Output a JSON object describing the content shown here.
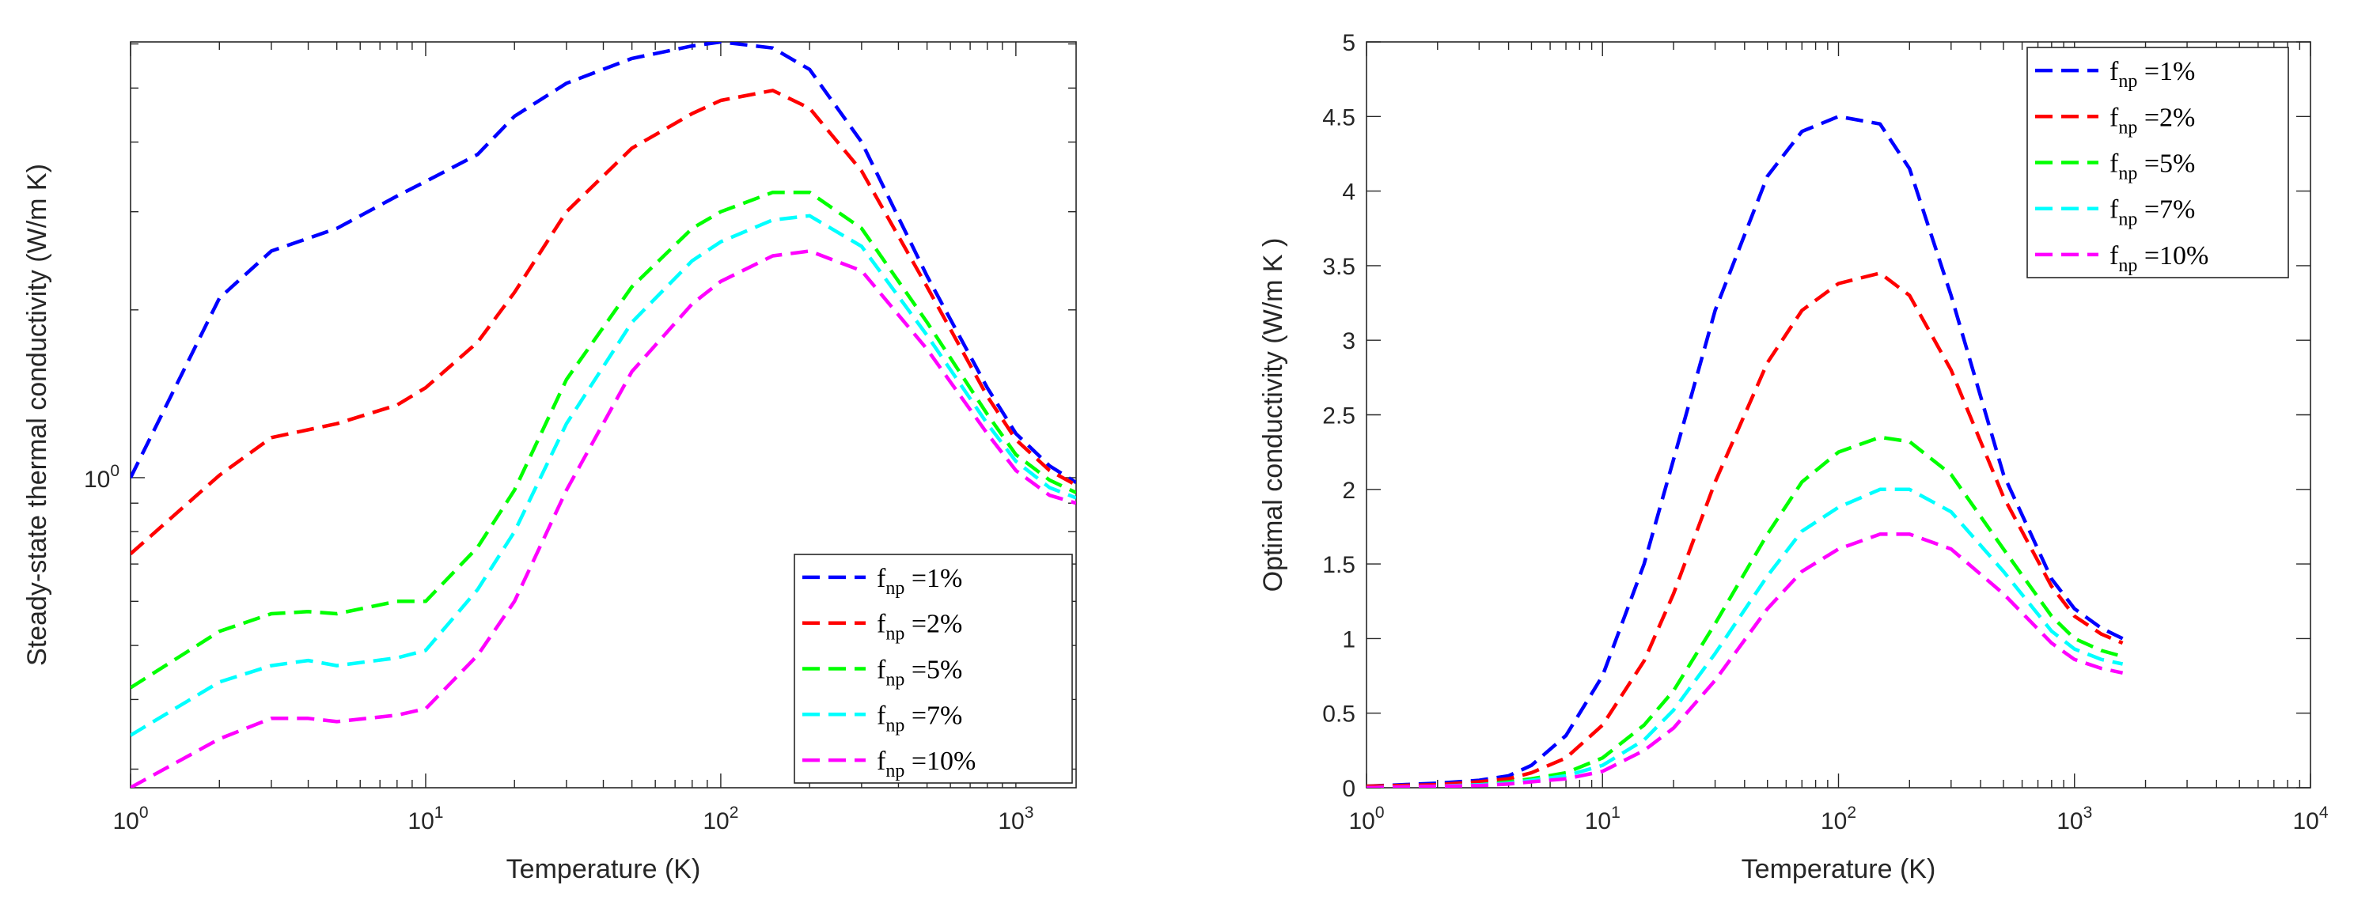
{
  "chart_data": [
    {
      "type": "line",
      "xscale": "log",
      "yscale": "log",
      "xlabel": "Temperature (K)",
      "ylabel": "Steady-state thermal conductivity (W/m K)",
      "xlim": [
        1,
        1600
      ],
      "ylim": [
        0.2778,
        6.05
      ],
      "xticks": [
        {
          "value": 1,
          "base": "10",
          "exp": "0"
        },
        {
          "value": 10,
          "base": "10",
          "exp": "1"
        },
        {
          "value": 100,
          "base": "10",
          "exp": "2"
        },
        {
          "value": 1000,
          "base": "10",
          "exp": "3"
        }
      ],
      "yticks": [
        {
          "value": 1,
          "base": "10",
          "exp": "0"
        }
      ],
      "legend_position": "bottom-right",
      "series": [
        {
          "name": "f_np = 1%",
          "label_main": "f",
          "label_sub": "np",
          "label_rest": " =1%",
          "color": "#0000ff",
          "x": [
            1,
            2,
            3,
            5,
            8,
            10,
            15,
            20,
            30,
            50,
            80,
            100,
            150,
            200,
            300,
            500,
            800,
            1000,
            1300,
            1600
          ],
          "y": [
            1.0,
            2.1,
            2.55,
            2.8,
            3.2,
            3.4,
            3.8,
            4.45,
            5.1,
            5.65,
            5.95,
            6.05,
            5.9,
            5.4,
            4.0,
            2.3,
            1.45,
            1.2,
            1.05,
            0.98
          ]
        },
        {
          "name": "f_np = 2%",
          "label_main": "f",
          "label_sub": "np",
          "label_rest": " =2%",
          "color": "#ff0000",
          "x": [
            1,
            2,
            3,
            5,
            8,
            10,
            15,
            20,
            30,
            50,
            80,
            100,
            150,
            200,
            300,
            500,
            800,
            1000,
            1300,
            1600
          ],
          "y": [
            0.73,
            1.01,
            1.18,
            1.25,
            1.35,
            1.45,
            1.75,
            2.15,
            3.0,
            3.9,
            4.5,
            4.75,
            4.95,
            4.6,
            3.55,
            2.2,
            1.4,
            1.17,
            1.03,
            0.97
          ]
        },
        {
          "name": "f_np = 5%",
          "label_main": "f",
          "label_sub": "np",
          "label_rest": " =5%",
          "color": "#00ff00",
          "x": [
            1,
            2,
            3,
            4,
            5,
            8,
            10,
            15,
            20,
            30,
            50,
            80,
            100,
            150,
            200,
            300,
            500,
            800,
            1000,
            1300,
            1600
          ],
          "y": [
            0.42,
            0.53,
            0.57,
            0.575,
            0.57,
            0.6,
            0.6,
            0.75,
            0.95,
            1.5,
            2.2,
            2.8,
            3.0,
            3.25,
            3.25,
            2.8,
            1.9,
            1.3,
            1.1,
            0.99,
            0.94
          ]
        },
        {
          "name": "f_np = 7%",
          "label_main": "f",
          "label_sub": "np",
          "label_rest": " =7%",
          "color": "#00ffff",
          "x": [
            1,
            2,
            3,
            4,
            5,
            8,
            10,
            15,
            20,
            30,
            50,
            80,
            100,
            150,
            200,
            300,
            500,
            800,
            1000,
            1300,
            1600
          ],
          "y": [
            0.345,
            0.43,
            0.46,
            0.47,
            0.46,
            0.475,
            0.49,
            0.63,
            0.8,
            1.25,
            1.9,
            2.45,
            2.65,
            2.9,
            2.95,
            2.6,
            1.8,
            1.25,
            1.07,
            0.96,
            0.92
          ]
        },
        {
          "name": "f_np = 10%",
          "label_main": "f",
          "label_sub": "np",
          "label_rest": " =10%",
          "color": "#ff00ff",
          "x": [
            1,
            2,
            3,
            4,
            5,
            8,
            10,
            15,
            20,
            30,
            50,
            80,
            100,
            150,
            200,
            300,
            500,
            800,
            1000,
            1300,
            1600
          ],
          "y": [
            0.278,
            0.34,
            0.37,
            0.37,
            0.365,
            0.375,
            0.385,
            0.48,
            0.6,
            0.95,
            1.55,
            2.05,
            2.25,
            2.5,
            2.55,
            2.35,
            1.7,
            1.2,
            1.03,
            0.93,
            0.9
          ]
        }
      ]
    },
    {
      "type": "line",
      "xscale": "log",
      "yscale": "linear",
      "xlabel": "Temperature (K)",
      "ylabel": "Optimal conductivity (W/m K )",
      "xlim": [
        1,
        10000
      ],
      "ylim": [
        0,
        5
      ],
      "xticks": [
        {
          "value": 1,
          "base": "10",
          "exp": "0"
        },
        {
          "value": 10,
          "base": "10",
          "exp": "1"
        },
        {
          "value": 100,
          "base": "10",
          "exp": "2"
        },
        {
          "value": 1000,
          "base": "10",
          "exp": "3"
        },
        {
          "value": 10000,
          "base": "10",
          "exp": "4"
        }
      ],
      "yticks": [
        {
          "value": 0,
          "label": "0"
        },
        {
          "value": 0.5,
          "label": "0.5"
        },
        {
          "value": 1,
          "label": "1"
        },
        {
          "value": 1.5,
          "label": "1.5"
        },
        {
          "value": 2,
          "label": "2"
        },
        {
          "value": 2.5,
          "label": "2.5"
        },
        {
          "value": 3,
          "label": "3"
        },
        {
          "value": 3.5,
          "label": "3.5"
        },
        {
          "value": 4,
          "label": "4"
        },
        {
          "value": 4.5,
          "label": "4.5"
        },
        {
          "value": 5,
          "label": "5"
        }
      ],
      "legend_position": "top-right",
      "series": [
        {
          "name": "f_np = 1%",
          "label_main": "f",
          "label_sub": "np",
          "label_rest": " =1%",
          "color": "#0000ff",
          "x": [
            1,
            2,
            3,
            4,
            5,
            7,
            10,
            15,
            20,
            30,
            50,
            70,
            100,
            150,
            200,
            300,
            500,
            800,
            1000,
            1300,
            1600
          ],
          "y": [
            0.01,
            0.03,
            0.05,
            0.08,
            0.15,
            0.35,
            0.75,
            1.5,
            2.2,
            3.2,
            4.1,
            4.4,
            4.5,
            4.45,
            4.15,
            3.3,
            2.1,
            1.4,
            1.2,
            1.07,
            1.0
          ]
        },
        {
          "name": "f_np = 2%",
          "label_main": "f",
          "label_sub": "np",
          "label_rest": " =2%",
          "color": "#ff0000",
          "x": [
            1,
            2,
            3,
            4,
            5,
            7,
            10,
            15,
            20,
            30,
            50,
            70,
            100,
            150,
            200,
            300,
            500,
            800,
            1000,
            1300,
            1600
          ],
          "y": [
            0.01,
            0.02,
            0.04,
            0.06,
            0.1,
            0.2,
            0.42,
            0.85,
            1.3,
            2.05,
            2.85,
            3.2,
            3.38,
            3.45,
            3.3,
            2.8,
            1.95,
            1.35,
            1.15,
            1.03,
            0.97
          ]
        },
        {
          "name": "f_np = 5%",
          "label_main": "f",
          "label_sub": "np",
          "label_rest": " =5%",
          "color": "#00ff00",
          "x": [
            1,
            2,
            3,
            4,
            5,
            7,
            10,
            15,
            20,
            30,
            50,
            70,
            100,
            150,
            200,
            300,
            500,
            800,
            1000,
            1300,
            1600
          ],
          "y": [
            0.0,
            0.01,
            0.02,
            0.04,
            0.06,
            0.1,
            0.2,
            0.42,
            0.65,
            1.1,
            1.7,
            2.05,
            2.25,
            2.35,
            2.32,
            2.1,
            1.6,
            1.15,
            1.0,
            0.92,
            0.88
          ]
        },
        {
          "name": "f_np = 7%",
          "label_main": "f",
          "label_sub": "np",
          "label_rest": " =7%",
          "color": "#00ffff",
          "x": [
            1,
            2,
            3,
            4,
            5,
            7,
            10,
            15,
            20,
            30,
            50,
            70,
            100,
            150,
            200,
            300,
            500,
            800,
            1000,
            1300,
            1600
          ],
          "y": [
            0.0,
            0.01,
            0.02,
            0.03,
            0.05,
            0.08,
            0.15,
            0.32,
            0.52,
            0.9,
            1.42,
            1.72,
            1.88,
            2.0,
            2.0,
            1.85,
            1.45,
            1.05,
            0.93,
            0.86,
            0.83
          ]
        },
        {
          "name": "f_np = 10%",
          "label_main": "f",
          "label_sub": "np",
          "label_rest": " =10%",
          "color": "#ff00ff",
          "x": [
            1,
            2,
            3,
            4,
            5,
            7,
            10,
            15,
            20,
            30,
            50,
            70,
            100,
            150,
            200,
            300,
            500,
            800,
            1000,
            1300,
            1600
          ],
          "y": [
            0.0,
            0.01,
            0.015,
            0.025,
            0.04,
            0.06,
            0.11,
            0.25,
            0.4,
            0.72,
            1.2,
            1.45,
            1.6,
            1.7,
            1.7,
            1.6,
            1.3,
            0.97,
            0.86,
            0.8,
            0.77
          ]
        }
      ]
    }
  ]
}
